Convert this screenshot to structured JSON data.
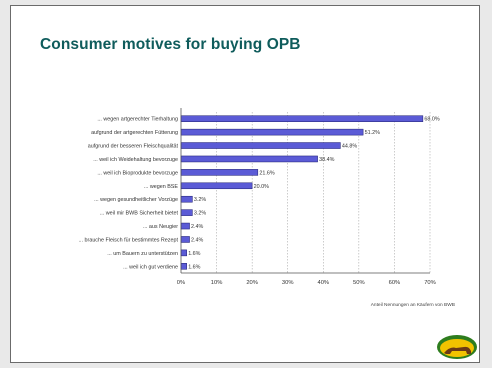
{
  "slide": {
    "title": "Consumer motives for buying OPB",
    "footnote": "Anteil Nennungen an Käufern von BWB",
    "logo_text": "Bio Weide-Beef"
  },
  "chart_data": {
    "type": "bar",
    "orientation": "horizontal",
    "title": "Consumer motives for buying OPB",
    "xlabel": "Anteil Nennungen an Käufern von BWB",
    "ylabel": "",
    "xlim": [
      0,
      70
    ],
    "xticks": [
      0,
      10,
      20,
      30,
      40,
      50,
      60,
      70
    ],
    "tick_labels": [
      "0%",
      "10%",
      "20%",
      "30%",
      "40%",
      "50%",
      "60%",
      "70%"
    ],
    "grid": "vertical-dashed",
    "bar_color": "#5b5bd6",
    "categories": [
      "... wegen artgerechter Tierhaltung",
      "aufgrund der artgerechten Fütterung",
      "aufgrund der besseren Fleischqualität",
      "... weil ich Weidehaltung bevorzuge",
      "... weil ich Bioprodukte bevorzuge",
      "... wegen BSE",
      "... wegen gesundheitlicher Vorzüge",
      "... weil mir BWB Sicherheit bietet",
      "... aus Neugier",
      "... brauche Fleisch für bestimmtes Rezept",
      "... um Bauern zu unterstützen",
      "... weil ich gut verdiene"
    ],
    "values": [
      68.0,
      51.2,
      44.8,
      38.4,
      21.6,
      20.0,
      3.2,
      3.2,
      2.4,
      2.4,
      1.6,
      1.6
    ],
    "value_labels": [
      "68.0%",
      "51.2%",
      "44.8%",
      "38.4%",
      "21.6%",
      "20.0%",
      "3.2%",
      "3.2%",
      "2.4%",
      "2.4%",
      "1.6%",
      "1.6%"
    ]
  }
}
